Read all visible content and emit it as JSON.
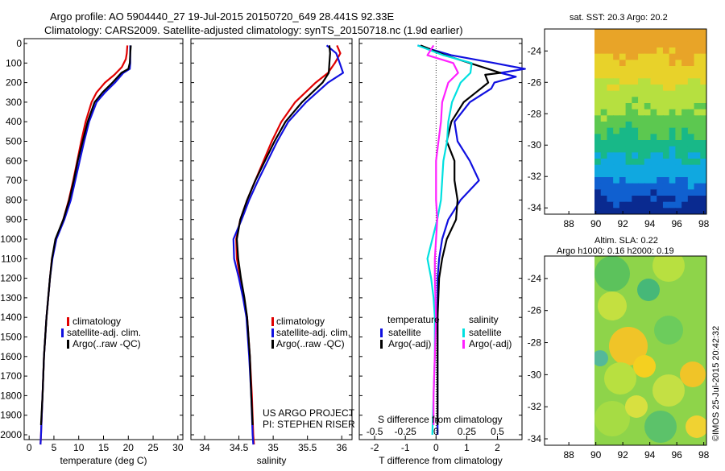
{
  "header": {
    "title1": "Argo profile: AO 5904440_27 19-Jul-2015 20150720_649 28.441S 92.33E",
    "title2": "Climatology: CARS2009. Satellite-adjusted climatology: synTS_20150718.nc (1.9d earlier)"
  },
  "colors": {
    "climatology": "#e00000",
    "satellite": "#1010e0",
    "argo": "#000000",
    "sat_salt": "#00e0e0",
    "argo_salt": "#ff20ff"
  },
  "chart_data": [
    {
      "id": "temperature",
      "type": "line",
      "xlabel": "temperature (deg C)",
      "ylabel": "",
      "xlim": [
        -1,
        31
      ],
      "ylim": [
        2080,
        0
      ],
      "xticks": [
        "0",
        "5",
        "10",
        "15",
        "20",
        "25",
        "30"
      ],
      "yticks": [
        "0",
        "100",
        "200",
        "300",
        "400",
        "500",
        "600",
        "700",
        "800",
        "900",
        "1000",
        "1100",
        "1200",
        "1300",
        "1400",
        "1500",
        "1600",
        "1700",
        "1800",
        "1900",
        "2000"
      ],
      "legend": [
        "climatology",
        "satellite-adj. clim.",
        "Argo(..raw -QC)"
      ],
      "series": [
        {
          "name": "climatology",
          "depth": [
            10,
            50,
            80,
            120,
            160,
            200,
            250,
            300,
            400,
            500,
            600,
            700,
            800,
            900,
            1000,
            1100,
            1200,
            1400,
            1600,
            1800,
            2000,
            2050
          ],
          "values": [
            19.8,
            19.7,
            19.5,
            18.7,
            17.2,
            15.3,
            13.6,
            12.6,
            11.4,
            10.5,
            9.7,
            8.9,
            8.0,
            6.9,
            5.4,
            4.6,
            4.2,
            3.5,
            3.0,
            2.7,
            2.4,
            2.3
          ]
        },
        {
          "name": "satellite-adj. clim.",
          "depth": [
            10,
            50,
            100,
            130,
            150,
            200,
            250,
            300,
            400,
            500,
            600,
            700,
            800,
            900,
            1000,
            1100,
            1200,
            1400,
            1600,
            1800,
            2000,
            2050
          ],
          "values": [
            20.4,
            20.4,
            20.4,
            20.3,
            19.0,
            17.3,
            15.3,
            13.6,
            12.1,
            11.1,
            10.2,
            9.3,
            8.4,
            7.1,
            5.5,
            4.7,
            4.2,
            3.5,
            3.0,
            2.7,
            2.4,
            2.3
          ]
        },
        {
          "name": "Argo(..raw -QC)",
          "depth": [
            10,
            50,
            100,
            130,
            150,
            200,
            250,
            300,
            400,
            500,
            600,
            700,
            800,
            900,
            1000,
            1100,
            1200,
            1400,
            1600,
            1800,
            1950
          ],
          "values": [
            20.5,
            20.4,
            20.3,
            20.0,
            18.6,
            16.8,
            14.8,
            13.2,
            11.8,
            10.8,
            9.8,
            9.0,
            8.1,
            6.9,
            5.3,
            4.6,
            4.2,
            3.5,
            3.0,
            2.7,
            2.4
          ]
        }
      ]
    },
    {
      "id": "salinity",
      "type": "line",
      "xlabel": "salinity",
      "xlim": [
        33.8,
        36.15
      ],
      "ylim": [
        2080,
        0
      ],
      "xticks": [
        "34",
        "34.5",
        "35",
        "35.5",
        "36"
      ],
      "legend": [
        "climatology",
        "satellite-adj. clim.",
        "Argo(..raw -QC)"
      ],
      "annotation": [
        "US ARGO PROJECT",
        "PI: STEPHEN RISER"
      ],
      "series": [
        {
          "name": "climatology",
          "depth": [
            10,
            50,
            100,
            150,
            200,
            300,
            400,
            500,
            600,
            700,
            800,
            900,
            1000,
            1100,
            1200,
            1300,
            1400,
            1600,
            1800,
            2000,
            2050
          ],
          "values": [
            35.93,
            35.98,
            35.9,
            35.8,
            35.62,
            35.32,
            35.12,
            34.98,
            34.86,
            34.74,
            34.62,
            34.52,
            34.46,
            34.47,
            34.52,
            34.57,
            34.62,
            34.66,
            34.69,
            34.71,
            34.72
          ]
        },
        {
          "name": "satellite-adj. clim.",
          "depth": [
            10,
            50,
            100,
            150,
            200,
            300,
            400,
            500,
            600,
            700,
            800,
            900,
            1000,
            1100,
            1200,
            1300,
            1400,
            1600,
            1800,
            2000,
            2050
          ],
          "values": [
            35.78,
            35.92,
            35.97,
            36.02,
            35.8,
            35.48,
            35.22,
            35.06,
            34.92,
            34.78,
            34.65,
            34.54,
            34.42,
            34.43,
            34.5,
            34.56,
            34.61,
            34.65,
            34.68,
            34.7,
            34.71
          ]
        },
        {
          "name": "Argo(..raw -QC)",
          "depth": [
            10,
            50,
            100,
            150,
            200,
            300,
            400,
            500,
            600,
            700,
            800,
            900,
            1000,
            1100,
            1200,
            1300,
            1400,
            1600,
            1800,
            1950
          ],
          "values": [
            35.82,
            35.83,
            35.82,
            35.81,
            35.72,
            35.42,
            35.18,
            35.02,
            34.88,
            34.74,
            34.62,
            34.52,
            34.47,
            34.49,
            34.53,
            34.58,
            34.62,
            34.66,
            34.68,
            34.7
          ]
        }
      ]
    },
    {
      "id": "difference",
      "type": "line",
      "xlabel": "T difference from climatology",
      "xlabel2": "S difference from climatology",
      "xlim": [
        -2.5,
        2.8
      ],
      "ylim": [
        2080,
        0
      ],
      "xticks": [
        "-2",
        "-1",
        "0",
        "1",
        "2"
      ],
      "xticks2": [
        "-0.5",
        "-0.25",
        "0",
        "0.25",
        "0.5"
      ],
      "legend_headers": [
        "temperature",
        "salinity"
      ],
      "legend": [
        "satellite",
        "Argo(-adj)",
        "satellite",
        "Argo(-adj)"
      ],
      "series": [
        {
          "name": "temperature satellite",
          "depth": [
            10,
            60,
            100,
            130,
            150,
            170,
            200,
            230,
            300,
            400,
            500,
            600,
            700,
            800,
            900,
            1000,
            1100,
            1200,
            1400,
            1600,
            1800,
            2000
          ],
          "values": [
            -0.6,
            0.5,
            1.9,
            2.9,
            2.1,
            2.6,
            1.9,
            1.8,
            1.1,
            0.6,
            0.7,
            1.1,
            1.4,
            0.8,
            0.4,
            0.2,
            0.1,
            0.05,
            0.05,
            0.05,
            0.05,
            0.05
          ]
        },
        {
          "name": "temperature Argo(-adj)",
          "depth": [
            10,
            60,
            100,
            150,
            160,
            200,
            250,
            300,
            400,
            500,
            600,
            700,
            800,
            900,
            1000,
            1100,
            1200,
            1400,
            1600,
            1800,
            1950
          ],
          "values": [
            -0.5,
            0.3,
            1.1,
            2.1,
            1.6,
            1.7,
            1.3,
            0.9,
            0.5,
            0.35,
            0.6,
            0.6,
            0.7,
            0.65,
            0.35,
            0.2,
            0.1,
            0.05,
            0.05,
            0.05,
            0.05
          ]
        },
        {
          "name": "salinity satellite",
          "depth": [
            10,
            60,
            100,
            150,
            200,
            300,
            400,
            500,
            600,
            700,
            800,
            900,
            1000,
            1100,
            1200,
            1300,
            1400,
            1600,
            1800,
            2000
          ],
          "values": [
            -0.15,
            0.06,
            0.29,
            0.28,
            0.2,
            0.13,
            0.1,
            0.09,
            0.06,
            0.05,
            0.04,
            0.01,
            -0.03,
            -0.07,
            -0.04,
            -0.02,
            -0.01,
            -0.01,
            -0.02,
            -0.03
          ]
        },
        {
          "name": "salinity Argo(-adj)",
          "depth": [
            10,
            60,
            100,
            150,
            200,
            300,
            400,
            500,
            600,
            700,
            800,
            900,
            1000,
            1100,
            1200,
            1400,
            1600,
            1800,
            1950
          ],
          "values": [
            -0.02,
            -0.07,
            0.14,
            0.18,
            0.1,
            0.05,
            0.04,
            0.02,
            0.0,
            0.0,
            0.0,
            0.01,
            0.0,
            -0.01,
            -0.01,
            0.0,
            -0.01,
            -0.02,
            -0.02
          ]
        }
      ]
    },
    {
      "id": "sst_map",
      "type": "heatmap",
      "title": "sat. SST: 20.3  Argo: 20.2",
      "xticks": [
        "88",
        "90",
        "92",
        "94",
        "96",
        "98"
      ],
      "yticks": [
        "-24",
        "-26",
        "-28",
        "-30",
        "-32",
        "-34"
      ]
    },
    {
      "id": "sla_map",
      "type": "heatmap",
      "title": "Altim. SLA: 0.22",
      "subtitle": "Argo h1000: 0.16 h2000: 0.19",
      "xticks": [
        "88",
        "90",
        "92",
        "94",
        "96",
        "98"
      ],
      "yticks": [
        "-24",
        "-26",
        "-28",
        "-30",
        "-32",
        "-34"
      ]
    }
  ],
  "footer": {
    "credit": "©IMOS 25-Jul-2015 20:42:32"
  }
}
